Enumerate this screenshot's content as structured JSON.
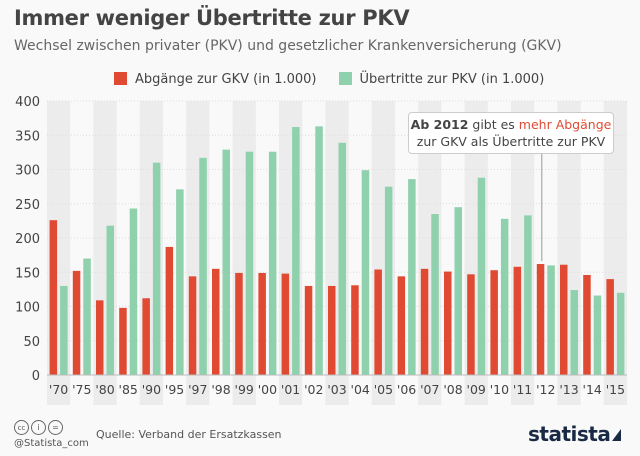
{
  "header": {
    "title": "Immer weniger Übertritte zur PKV",
    "subtitle": "Wechsel zwischen privater (PKV) und gesetzlicher Krankenversicherung (GKV)"
  },
  "annotation": {
    "bold": "Ab 2012",
    "mid": " gibt es ",
    "highlight": "mehr Abgänge",
    "line2": "zur GKV als Übertritte zur PKV"
  },
  "footer": {
    "handle": "@Statista_com",
    "source": "Quelle: Verband der Ersatzkassen",
    "logo": "statista",
    "license_icons": [
      "cc-icon",
      "by-icon",
      "nd-icon"
    ]
  },
  "chart_data": {
    "type": "bar",
    "title": "Immer weniger Übertritte zur PKV",
    "ylim": [
      0,
      400
    ],
    "yticks": [
      0,
      50,
      100,
      150,
      200,
      250,
      300,
      350,
      400
    ],
    "grid": true,
    "legend": "top",
    "categories": [
      "'70",
      "'75",
      "'80",
      "'85",
      "'90",
      "'95",
      "'97",
      "'98",
      "'99",
      "'00",
      "'01",
      "'02",
      "'03",
      "'04",
      "'05",
      "'06",
      "'07",
      "'08",
      "'09",
      "'10",
      "'11",
      "'12",
      "'13",
      "'14",
      "'15"
    ],
    "series": [
      {
        "name": "Abgänge zur GKV (in 1.000)",
        "color": "#e04a32",
        "values": [
          226,
          152,
          109,
          98,
          112,
          187,
          144,
          155,
          149,
          149,
          148,
          130,
          130,
          131,
          154,
          144,
          155,
          151,
          147,
          153,
          158,
          162,
          161,
          146,
          140
        ]
      },
      {
        "name": "Übertritte zur PKV (in 1.000)",
        "color": "#8fd0ad",
        "values": [
          130,
          170,
          218,
          243,
          310,
          271,
          317,
          329,
          326,
          326,
          362,
          363,
          339,
          299,
          275,
          286,
          235,
          245,
          288,
          228,
          233,
          160,
          124,
          116,
          120
        ]
      }
    ]
  }
}
